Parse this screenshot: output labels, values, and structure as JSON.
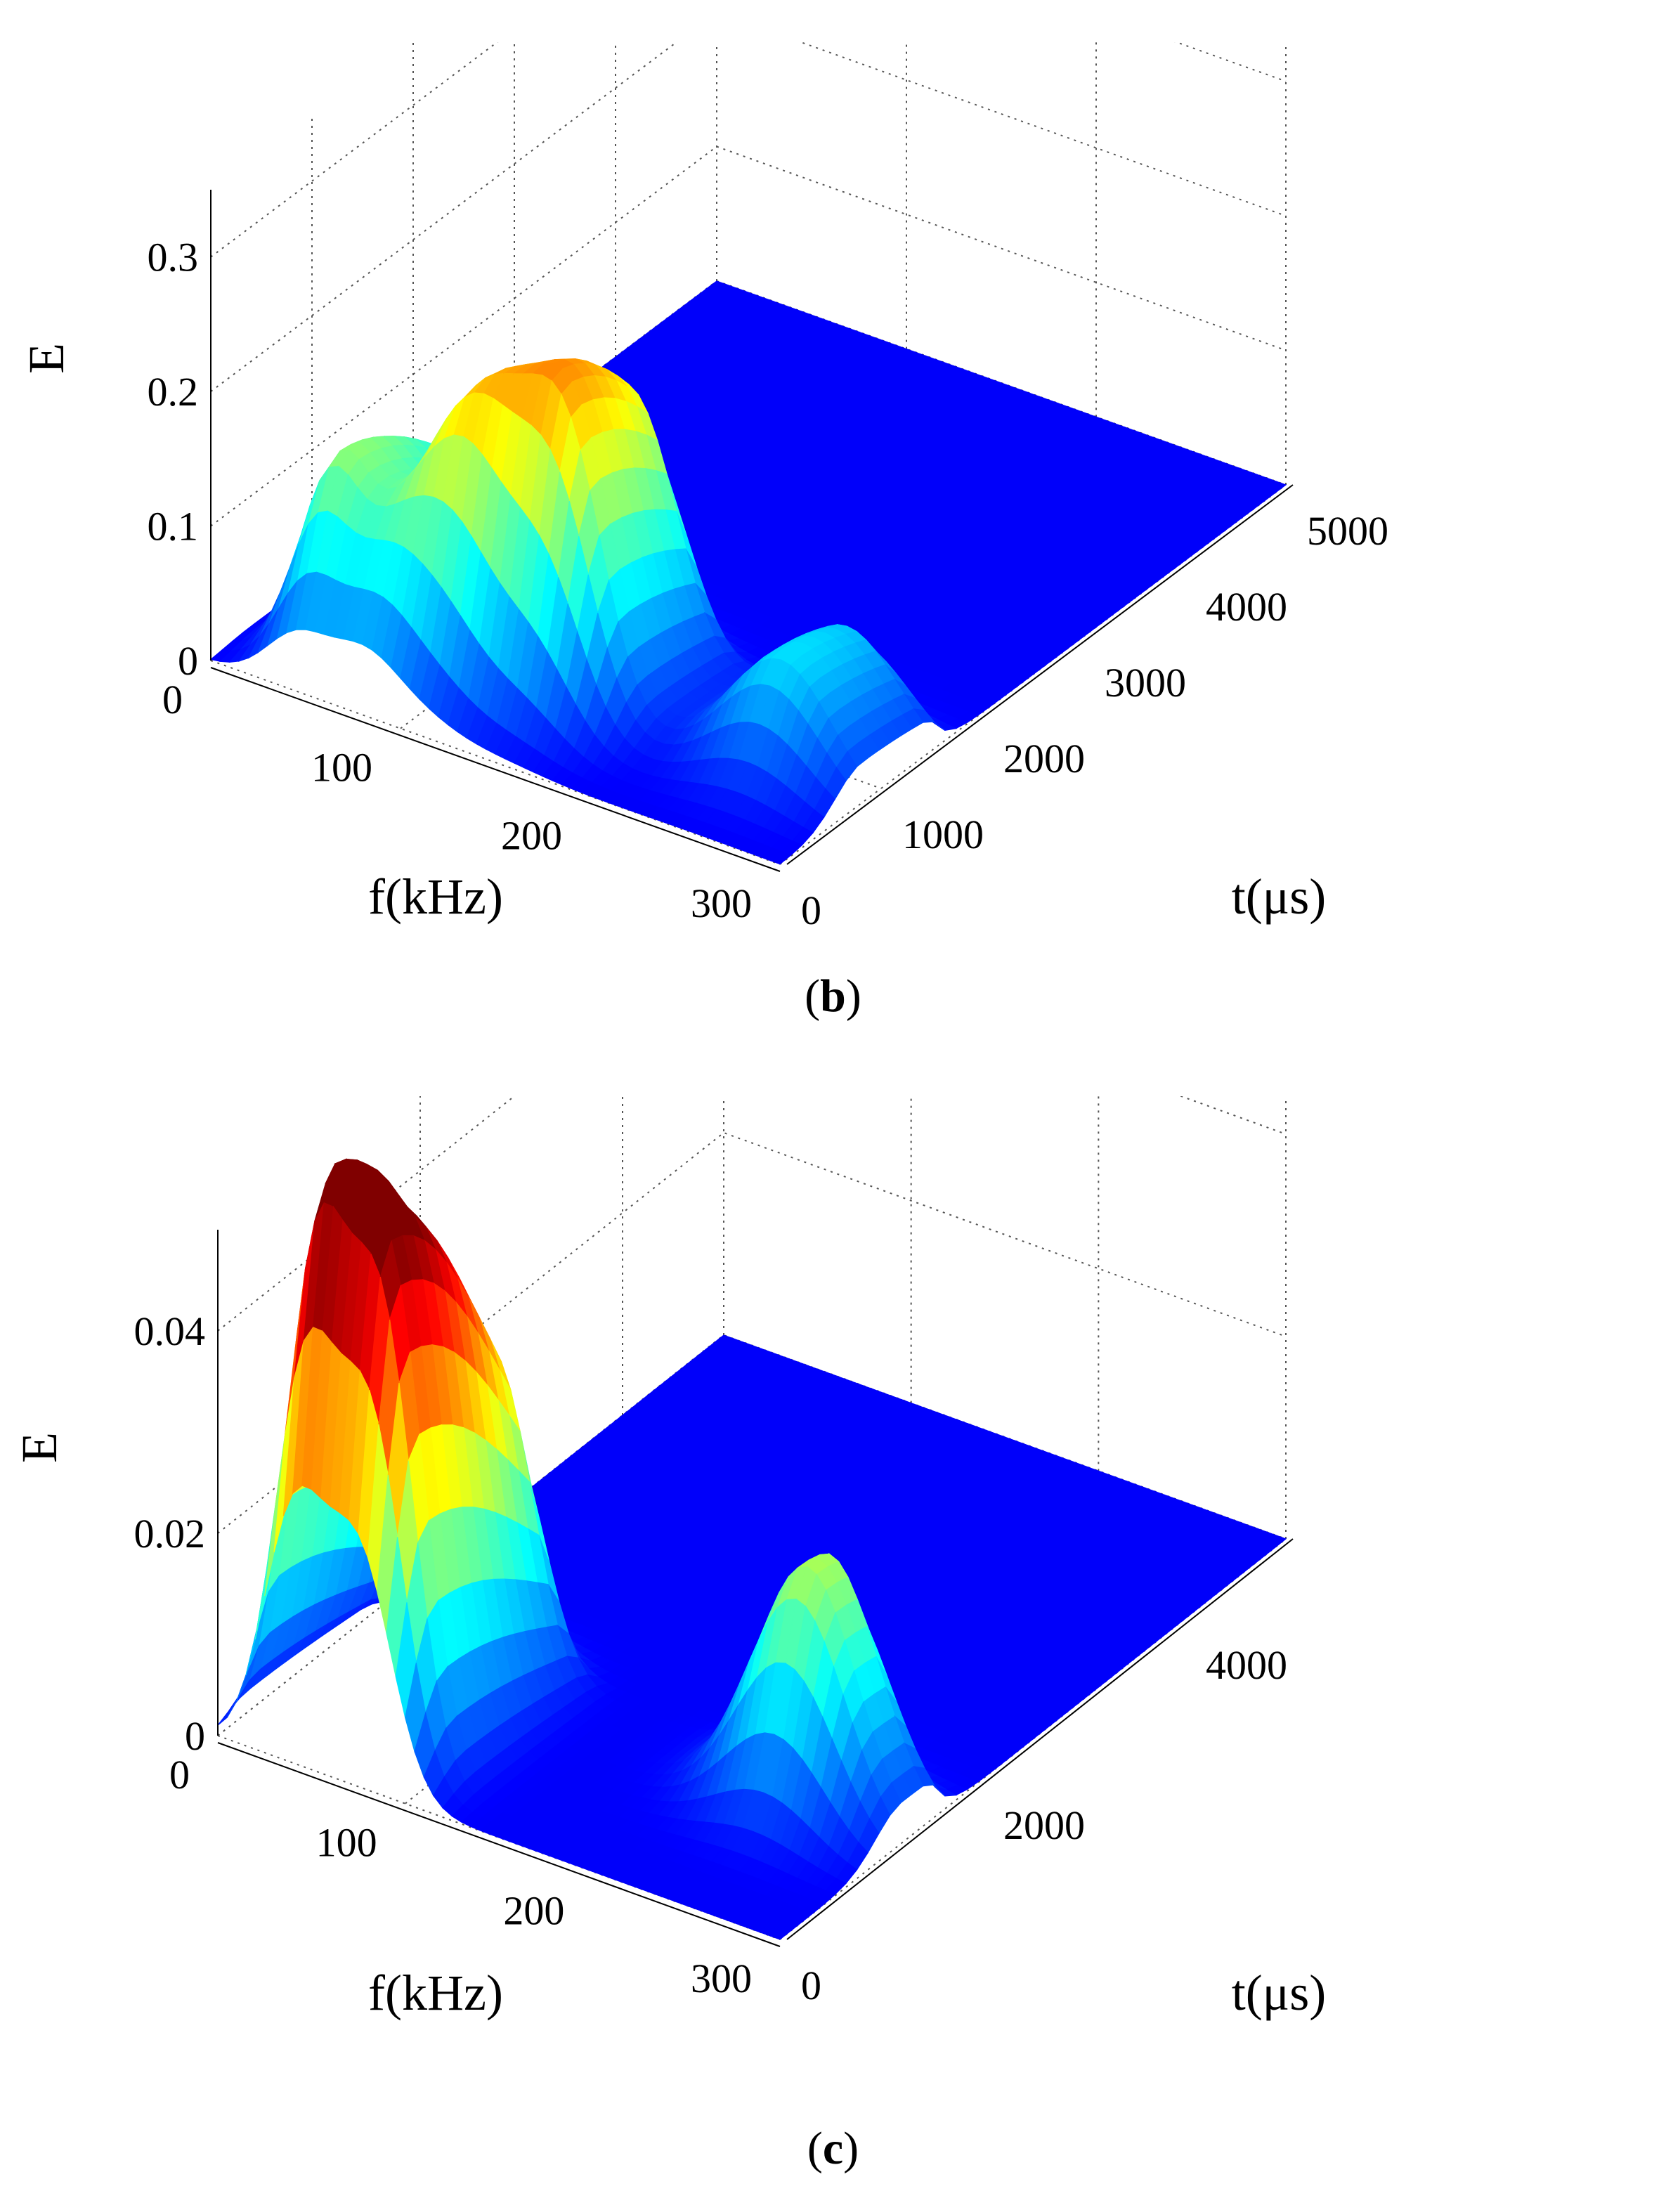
{
  "chart_data": [
    {
      "type": "surface",
      "panel": "(b)",
      "zlabel": "E",
      "xlabel": "f(kHz)",
      "ylabel": "t(μs)",
      "z_ticks": [
        "0",
        "0.1",
        "0.2",
        "0.3"
      ],
      "f_ticks": [
        "0",
        "100",
        "200",
        "300"
      ],
      "t_ticks": [
        "0",
        "1000",
        "2000",
        "3000",
        "4000",
        "5000"
      ],
      "zlim": [
        0,
        0.35
      ],
      "f_range": [
        0,
        300
      ],
      "t_range": [
        0,
        5000
      ],
      "grid": true,
      "colormap": "jet",
      "ridges": [
        {
          "f_khz": 45,
          "t_us": 400,
          "peak_E": 0.14
        },
        {
          "f_khz": 80,
          "t_us": 300,
          "peak_E": 0.09
        },
        {
          "f_khz": 110,
          "t_us": 550,
          "peak_E": 0.17
        },
        {
          "f_khz": 150,
          "t_us": 700,
          "peak_E": 0.22
        },
        {
          "f_khz": 260,
          "t_us": 800,
          "peak_E": 0.09
        }
      ]
    },
    {
      "type": "surface",
      "panel": "(c)",
      "zlabel": "E",
      "xlabel": "f(kHz)",
      "ylabel": "t(μs)",
      "z_ticks": [
        "0",
        "0.02",
        "0.04"
      ],
      "f_ticks": [
        "0",
        "100",
        "200",
        "300"
      ],
      "t_ticks": [
        "0",
        "2000",
        "4000"
      ],
      "zlim": [
        0,
        0.05
      ],
      "f_range": [
        0,
        300
      ],
      "t_range": [
        0,
        5000
      ],
      "grid": true,
      "colormap": "jet",
      "ridges": [
        {
          "f_khz": 40,
          "t_us": 300,
          "peak_E": 0.048
        },
        {
          "f_khz": 75,
          "t_us": 300,
          "peak_E": 0.047
        },
        {
          "f_khz": 250,
          "t_us": 1200,
          "peak_E": 0.024
        }
      ]
    }
  ],
  "captions": {
    "b_open": "(",
    "b_letter": "b",
    "b_close": ")",
    "c_open": "(",
    "c_letter": "c",
    "c_close": ")"
  }
}
